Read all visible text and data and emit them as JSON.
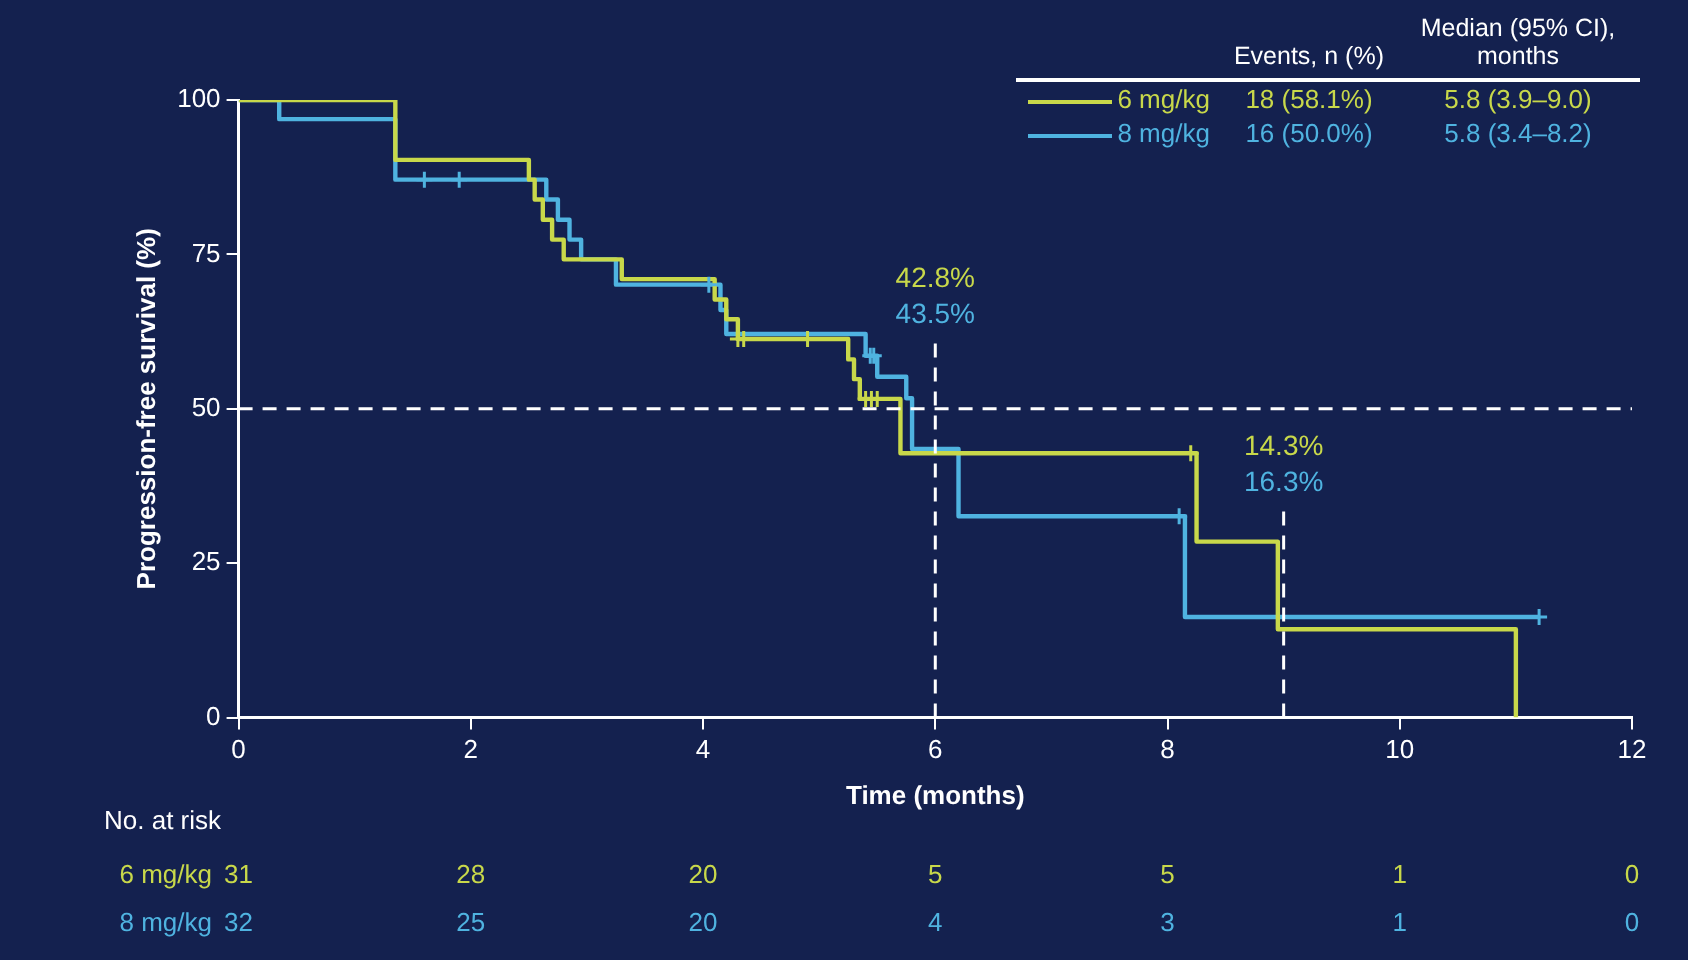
{
  "chart_data": {
    "type": "step",
    "xlabel": "Time (months)",
    "ylabel": "Progression-free survival (%)",
    "xlim": [
      0,
      12
    ],
    "xticks": [
      0,
      2,
      4,
      6,
      8,
      10,
      12
    ],
    "ylim": [
      0,
      100
    ],
    "yticks": [
      0,
      25,
      50,
      75,
      100
    ],
    "grid": false,
    "legend": "top right",
    "line_style": "solid",
    "series": [
      {
        "name": "6 mg/kg",
        "color": "#c8d84a",
        "x": [
          0,
          1.35,
          2.5,
          2.55,
          2.62,
          2.7,
          2.8,
          3.3,
          4.1,
          4.2,
          4.3,
          5.25,
          5.3,
          5.35,
          5.7,
          8.25,
          8.95,
          11.0
        ],
        "values": [
          100,
          90.3,
          87.1,
          83.9,
          80.6,
          77.4,
          74.2,
          71,
          67.7,
          64.5,
          61.3,
          58,
          54.8,
          51.6,
          42.8,
          28.5,
          14.3,
          0
        ]
      },
      {
        "name": "8 mg/kg",
        "color": "#4fb3e0",
        "x": [
          0,
          0.35,
          1.35,
          2.65,
          2.75,
          2.85,
          2.95,
          3.25,
          4.15,
          4.2,
          5.4,
          5.5,
          5.75,
          5.8,
          6.2,
          8.15,
          11.2
        ],
        "values": [
          100,
          96.9,
          87.1,
          83.9,
          80.6,
          77.4,
          74.2,
          70.1,
          66,
          62.1,
          58.6,
          55.2,
          51.7,
          43.5,
          32.6,
          16.3,
          16.3
        ]
      },
      {
        "type": "scatter",
        "marker": "cross",
        "color": "#c8d84a",
        "x": [
          4.3,
          4.35,
          4.9,
          5.4,
          5.45,
          5.5,
          8.2
        ],
        "values": [
          61.3,
          61.3,
          61.3,
          51.6,
          51.6,
          51.6,
          42.8
        ]
      },
      {
        "type": "scatter",
        "marker": "cross",
        "color": "#4fb3e0",
        "x": [
          1.6,
          1.9,
          4.05,
          5.44,
          5.47,
          8.1,
          11.2
        ],
        "values": [
          87.1,
          87.1,
          70.1,
          58.6,
          58.6,
          32.6,
          16.3
        ]
      }
    ],
    "ref_lines": [
      {
        "axis": "y",
        "value": 50,
        "line_style": "dashed",
        "color": "#ffffff"
      },
      {
        "axis": "x",
        "value": 6,
        "line_style": "dashed",
        "color": "#ffffff"
      },
      {
        "axis": "x",
        "value": 9,
        "line_style": "dashed",
        "color": "#ffffff"
      }
    ],
    "annotations": [
      "Events, n (%)",
      "Median (95% CI), months",
      "18 (58.1%)",
      "5.8 (3.9–9.0)",
      "16 (50.0%)",
      "5.8 (3.4–8.2)",
      "No. at risk",
      "31",
      "28",
      "20",
      "5",
      "5",
      "1",
      "0",
      "32",
      "25",
      "20",
      "4",
      "3",
      "1",
      "0",
      "42.8%",
      "43.5%",
      "14.3%",
      "16.3%"
    ]
  }
}
